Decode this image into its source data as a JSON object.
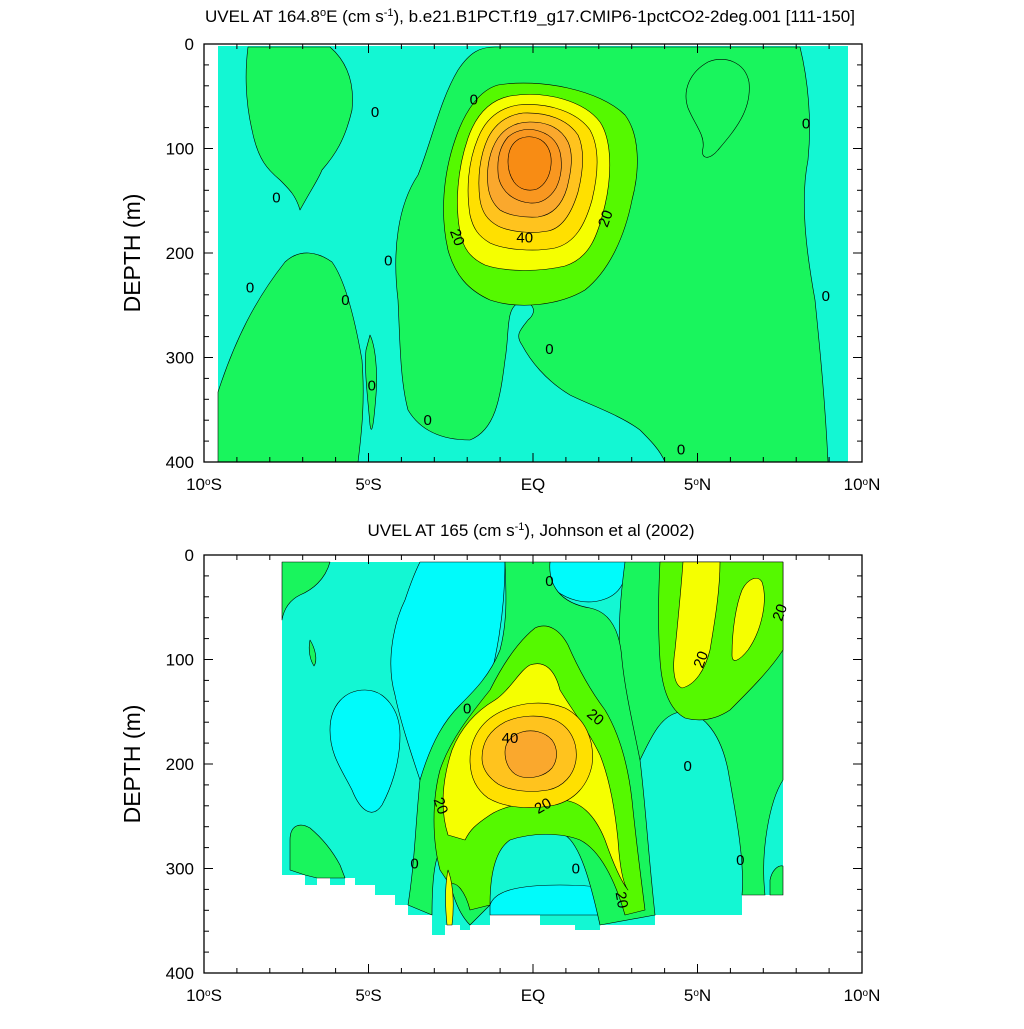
{
  "chart_data": [
    {
      "type": "contour",
      "title_prefix": "UVEL AT 164.8",
      "title_deg": "o",
      "title_mid": "E (cm s",
      "title_exp": "-1",
      "title_suffix": "), b.e21.B1PCT.f19_g17.CMIP6-1pctCO2-2deg.001 [111-150]",
      "ylabel": "DEPTH (m)",
      "ylim": [
        0,
        400
      ],
      "y_ticks": [
        "0",
        "100",
        "200",
        "300",
        "400"
      ],
      "xlim": [
        -10,
        10
      ],
      "x_ticks": [
        {
          "v": -10,
          "num": "10",
          "hem": "S"
        },
        {
          "v": -5,
          "num": "5",
          "hem": "S"
        },
        {
          "v": 0,
          "num": "EQ",
          "hem": ""
        },
        {
          "v": 5,
          "num": "5",
          "hem": "N"
        },
        {
          "v": 10,
          "num": "10",
          "hem": "N"
        }
      ],
      "contour_labels": [
        {
          "text": "0",
          "lat": -1.8,
          "depth": 53,
          "rot": 0
        },
        {
          "text": "0",
          "lat": -4.8,
          "depth": 65,
          "rot": 0
        },
        {
          "text": "0",
          "lat": -7.8,
          "depth": 147,
          "rot": 0
        },
        {
          "text": "0",
          "lat": -8.6,
          "depth": 233,
          "rot": 0
        },
        {
          "text": "0",
          "lat": -4.4,
          "depth": 207,
          "rot": 0
        },
        {
          "text": "0",
          "lat": -5.7,
          "depth": 245,
          "rot": 0
        },
        {
          "text": "0",
          "lat": -4.9,
          "depth": 327,
          "rot": 0
        },
        {
          "text": "0",
          "lat": -3.2,
          "depth": 360,
          "rot": 0
        },
        {
          "text": "0",
          "lat": 0.5,
          "depth": 292,
          "rot": 0
        },
        {
          "text": "0",
          "lat": 4.5,
          "depth": 388,
          "rot": 0
        },
        {
          "text": "0",
          "lat": 8.3,
          "depth": 76,
          "rot": 0
        },
        {
          "text": "0",
          "lat": 8.9,
          "depth": 241,
          "rot": 0
        },
        {
          "text": "20",
          "lat": -2.3,
          "depth": 185,
          "rot": 70
        },
        {
          "text": "20",
          "lat": 2.2,
          "depth": 167,
          "rot": -70
        },
        {
          "text": "40",
          "lat": -0.25,
          "depth": 185,
          "rot": 0
        }
      ]
    },
    {
      "type": "contour",
      "title_prefix": "UVEL AT 165 (cm s",
      "title_deg": "",
      "title_mid": "",
      "title_exp": "-1",
      "title_suffix": "), Johnson et al (2002)",
      "ylabel": "DEPTH (m)",
      "ylim": [
        0,
        400
      ],
      "y_ticks": [
        "0",
        "100",
        "200",
        "300",
        "400"
      ],
      "xlim": [
        -10,
        10
      ],
      "x_ticks": [
        {
          "v": -10,
          "num": "10",
          "hem": "S"
        },
        {
          "v": -5,
          "num": "5",
          "hem": "S"
        },
        {
          "v": 0,
          "num": "EQ",
          "hem": ""
        },
        {
          "v": 5,
          "num": "5",
          "hem": "N"
        },
        {
          "v": 10,
          "num": "10",
          "hem": "N"
        }
      ],
      "contour_labels": [
        {
          "text": "0",
          "lat": 0.5,
          "depth": 25,
          "rot": 0
        },
        {
          "text": "0",
          "lat": -2.0,
          "depth": 147,
          "rot": 0
        },
        {
          "text": "0",
          "lat": 4.7,
          "depth": 202,
          "rot": 0
        },
        {
          "text": "0",
          "lat": -3.6,
          "depth": 295,
          "rot": 0
        },
        {
          "text": "0",
          "lat": 1.3,
          "depth": 300,
          "rot": 0
        },
        {
          "text": "0",
          "lat": 6.3,
          "depth": 292,
          "rot": 0
        },
        {
          "text": "20",
          "lat": 5.1,
          "depth": 100,
          "rot": -70
        },
        {
          "text": "20",
          "lat": 7.5,
          "depth": 55,
          "rot": -70
        },
        {
          "text": "20",
          "lat": 1.9,
          "depth": 155,
          "rot": 40
        },
        {
          "text": "20",
          "lat": -2.8,
          "depth": 240,
          "rot": 70
        },
        {
          "text": "20",
          "lat": 0.3,
          "depth": 240,
          "rot": -30
        },
        {
          "text": "20",
          "lat": 2.7,
          "depth": 330,
          "rot": 80
        },
        {
          "text": "40",
          "lat": -0.7,
          "depth": 175,
          "rot": 0
        }
      ]
    }
  ]
}
